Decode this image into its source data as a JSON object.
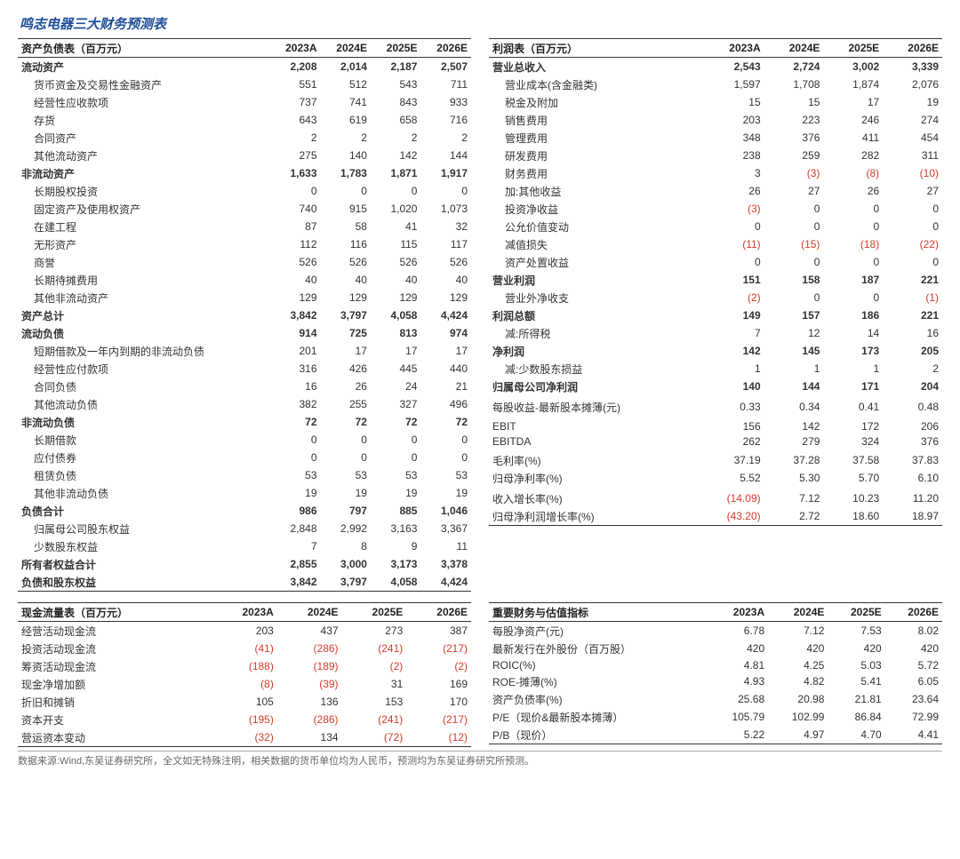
{
  "title": "鸣志电器三大财务预测表",
  "years": [
    "2023A",
    "2024E",
    "2025E",
    "2026E"
  ],
  "balance": {
    "header": "资产负债表（百万元）",
    "rows": [
      {
        "l": "流动资产",
        "v": [
          "2,208",
          "2,014",
          "2,187",
          "2,507"
        ],
        "b": 1
      },
      {
        "l": "货币资金及交易性金融资产",
        "v": [
          "551",
          "512",
          "543",
          "711"
        ],
        "i": 1
      },
      {
        "l": "经营性应收款项",
        "v": [
          "737",
          "741",
          "843",
          "933"
        ],
        "i": 1
      },
      {
        "l": "存货",
        "v": [
          "643",
          "619",
          "658",
          "716"
        ],
        "i": 1
      },
      {
        "l": "合同资产",
        "v": [
          "2",
          "2",
          "2",
          "2"
        ],
        "i": 1
      },
      {
        "l": "其他流动资产",
        "v": [
          "275",
          "140",
          "142",
          "144"
        ],
        "i": 1
      },
      {
        "l": "非流动资产",
        "v": [
          "1,633",
          "1,783",
          "1,871",
          "1,917"
        ],
        "b": 1
      },
      {
        "l": "长期股权投资",
        "v": [
          "0",
          "0",
          "0",
          "0"
        ],
        "i": 1
      },
      {
        "l": "固定资产及使用权资产",
        "v": [
          "740",
          "915",
          "1,020",
          "1,073"
        ],
        "i": 1
      },
      {
        "l": "在建工程",
        "v": [
          "87",
          "58",
          "41",
          "32"
        ],
        "i": 1
      },
      {
        "l": "无形资产",
        "v": [
          "112",
          "116",
          "115",
          "117"
        ],
        "i": 1
      },
      {
        "l": "商誉",
        "v": [
          "526",
          "526",
          "526",
          "526"
        ],
        "i": 1
      },
      {
        "l": "长期待摊费用",
        "v": [
          "40",
          "40",
          "40",
          "40"
        ],
        "i": 1
      },
      {
        "l": "其他非流动资产",
        "v": [
          "129",
          "129",
          "129",
          "129"
        ],
        "i": 1
      },
      {
        "l": "资产总计",
        "v": [
          "3,842",
          "3,797",
          "4,058",
          "4,424"
        ],
        "b": 1
      },
      {
        "l": "流动负债",
        "v": [
          "914",
          "725",
          "813",
          "974"
        ],
        "b": 1
      },
      {
        "l": "短期借款及一年内到期的非流动负债",
        "v": [
          "201",
          "17",
          "17",
          "17"
        ],
        "i": 1
      },
      {
        "l": "经营性应付款项",
        "v": [
          "316",
          "426",
          "445",
          "440"
        ],
        "i": 1
      },
      {
        "l": "合同负债",
        "v": [
          "16",
          "26",
          "24",
          "21"
        ],
        "i": 1
      },
      {
        "l": "其他流动负债",
        "v": [
          "382",
          "255",
          "327",
          "496"
        ],
        "i": 1
      },
      {
        "l": "非流动负债",
        "v": [
          "72",
          "72",
          "72",
          "72"
        ],
        "b": 1
      },
      {
        "l": "长期借款",
        "v": [
          "0",
          "0",
          "0",
          "0"
        ],
        "i": 1
      },
      {
        "l": "应付债券",
        "v": [
          "0",
          "0",
          "0",
          "0"
        ],
        "i": 1
      },
      {
        "l": "租赁负债",
        "v": [
          "53",
          "53",
          "53",
          "53"
        ],
        "i": 1
      },
      {
        "l": "其他非流动负债",
        "v": [
          "19",
          "19",
          "19",
          "19"
        ],
        "i": 1
      },
      {
        "l": "负债合计",
        "v": [
          "986",
          "797",
          "885",
          "1,046"
        ],
        "b": 1
      },
      {
        "l": "归属母公司股东权益",
        "v": [
          "2,848",
          "2,992",
          "3,163",
          "3,367"
        ],
        "i": 1
      },
      {
        "l": "少数股东权益",
        "v": [
          "7",
          "8",
          "9",
          "11"
        ],
        "i": 1
      },
      {
        "l": "所有者权益合计",
        "v": [
          "2,855",
          "3,000",
          "3,173",
          "3,378"
        ],
        "b": 1
      },
      {
        "l": "负债和股东权益",
        "v": [
          "3,842",
          "3,797",
          "4,058",
          "4,424"
        ],
        "b": 1,
        "sep": 1
      }
    ]
  },
  "income": {
    "header": "利润表（百万元）",
    "rows": [
      {
        "l": "营业总收入",
        "v": [
          "2,543",
          "2,724",
          "3,002",
          "3,339"
        ],
        "b": 1
      },
      {
        "l": "营业成本(含金融类)",
        "v": [
          "1,597",
          "1,708",
          "1,874",
          "2,076"
        ],
        "i": 1
      },
      {
        "l": "税金及附加",
        "v": [
          "15",
          "15",
          "17",
          "19"
        ],
        "i": 1
      },
      {
        "l": "销售费用",
        "v": [
          "203",
          "223",
          "246",
          "274"
        ],
        "i": 1
      },
      {
        "l": "管理费用",
        "v": [
          "348",
          "376",
          "411",
          "454"
        ],
        "i": 1
      },
      {
        "l": "研发费用",
        "v": [
          "238",
          "259",
          "282",
          "311"
        ],
        "i": 1
      },
      {
        "l": "财务费用",
        "v": [
          "3",
          "(3)",
          "(8)",
          "(10)"
        ],
        "i": 1,
        "n": [
          0,
          1,
          1,
          1
        ]
      },
      {
        "l": "加:其他收益",
        "v": [
          "26",
          "27",
          "26",
          "27"
        ],
        "i": 1
      },
      {
        "l": "投资净收益",
        "v": [
          "(3)",
          "0",
          "0",
          "0"
        ],
        "i": 1,
        "n": [
          1,
          0,
          0,
          0
        ]
      },
      {
        "l": "公允价值变动",
        "v": [
          "0",
          "0",
          "0",
          "0"
        ],
        "i": 1
      },
      {
        "l": "减值损失",
        "v": [
          "(11)",
          "(15)",
          "(18)",
          "(22)"
        ],
        "i": 1,
        "n": [
          1,
          1,
          1,
          1
        ]
      },
      {
        "l": "资产处置收益",
        "v": [
          "0",
          "0",
          "0",
          "0"
        ],
        "i": 1
      },
      {
        "l": "营业利润",
        "v": [
          "151",
          "158",
          "187",
          "221"
        ],
        "b": 1
      },
      {
        "l": "营业外净收支",
        "v": [
          "(2)",
          "0",
          "0",
          "(1)"
        ],
        "i": 1,
        "n": [
          1,
          0,
          0,
          1
        ]
      },
      {
        "l": "利润总额",
        "v": [
          "149",
          "157",
          "186",
          "221"
        ],
        "b": 1
      },
      {
        "l": "减:所得税",
        "v": [
          "7",
          "12",
          "14",
          "16"
        ],
        "i": 1
      },
      {
        "l": "净利润",
        "v": [
          "142",
          "145",
          "173",
          "205"
        ],
        "b": 1
      },
      {
        "l": "减:少数股东损益",
        "v": [
          "1",
          "1",
          "1",
          "2"
        ],
        "i": 1
      },
      {
        "l": "归属母公司净利润",
        "v": [
          "140",
          "144",
          "171",
          "204"
        ],
        "b": 1
      },
      {
        "l": "",
        "v": [
          "",
          "",
          "",
          ""
        ]
      },
      {
        "l": "每股收益-最新股本摊薄(元)",
        "v": [
          "0.33",
          "0.34",
          "0.41",
          "0.48"
        ]
      },
      {
        "l": "",
        "v": [
          "",
          "",
          "",
          ""
        ]
      },
      {
        "l": "EBIT",
        "v": [
          "156",
          "142",
          "172",
          "206"
        ]
      },
      {
        "l": "EBITDA",
        "v": [
          "262",
          "279",
          "324",
          "376"
        ]
      },
      {
        "l": "",
        "v": [
          "",
          "",
          "",
          ""
        ]
      },
      {
        "l": "毛利率(%)",
        "v": [
          "37.19",
          "37.28",
          "37.58",
          "37.83"
        ]
      },
      {
        "l": "归母净利率(%)",
        "v": [
          "5.52",
          "5.30",
          "5.70",
          "6.10"
        ]
      },
      {
        "l": "",
        "v": [
          "",
          "",
          "",
          ""
        ]
      },
      {
        "l": "收入增长率(%)",
        "v": [
          "(14.09)",
          "7.12",
          "10.23",
          "11.20"
        ],
        "n": [
          1,
          0,
          0,
          0
        ]
      },
      {
        "l": "归母净利润增长率(%)",
        "v": [
          "(43.20)",
          "2.72",
          "18.60",
          "18.97"
        ],
        "n": [
          1,
          0,
          0,
          0
        ],
        "sep": 1
      }
    ]
  },
  "cashflow": {
    "header": "现金流量表（百万元）",
    "rows": [
      {
        "l": "经营活动现金流",
        "v": [
          "203",
          "437",
          "273",
          "387"
        ]
      },
      {
        "l": "投资活动现金流",
        "v": [
          "(41)",
          "(286)",
          "(241)",
          "(217)"
        ],
        "n": [
          1,
          1,
          1,
          1
        ]
      },
      {
        "l": "筹资活动现金流",
        "v": [
          "(188)",
          "(189)",
          "(2)",
          "(2)"
        ],
        "n": [
          1,
          1,
          1,
          1
        ]
      },
      {
        "l": "现金净增加额",
        "v": [
          "(8)",
          "(39)",
          "31",
          "169"
        ],
        "n": [
          1,
          1,
          0,
          0
        ]
      },
      {
        "l": "折旧和摊销",
        "v": [
          "105",
          "136",
          "153",
          "170"
        ]
      },
      {
        "l": "资本开支",
        "v": [
          "(195)",
          "(286)",
          "(241)",
          "(217)"
        ],
        "n": [
          1,
          1,
          1,
          1
        ]
      },
      {
        "l": "营运资本变动",
        "v": [
          "(32)",
          "134",
          "(72)",
          "(12)"
        ],
        "n": [
          1,
          0,
          1,
          1
        ],
        "sep": 1
      }
    ]
  },
  "metrics": {
    "header": "重要财务与估值指标",
    "rows": [
      {
        "l": "每股净资产(元)",
        "v": [
          "6.78",
          "7.12",
          "7.53",
          "8.02"
        ]
      },
      {
        "l": "最新发行在外股份（百万股）",
        "v": [
          "420",
          "420",
          "420",
          "420"
        ]
      },
      {
        "l": "ROIC(%)",
        "v": [
          "4.81",
          "4.25",
          "5.03",
          "5.72"
        ]
      },
      {
        "l": "ROE-摊薄(%)",
        "v": [
          "4.93",
          "4.82",
          "5.41",
          "6.05"
        ]
      },
      {
        "l": "资产负债率(%)",
        "v": [
          "25.68",
          "20.98",
          "21.81",
          "23.64"
        ]
      },
      {
        "l": "P/E（现价&最新股本摊薄）",
        "v": [
          "105.79",
          "102.99",
          "86.84",
          "72.99"
        ]
      },
      {
        "l": "P/B（现价）",
        "v": [
          "5.22",
          "4.97",
          "4.70",
          "4.41"
        ],
        "sep": 1
      }
    ]
  },
  "footnote": "数据来源:Wind,东吴证券研究所，全文如无特殊注明，相关数据的货币单位均为人民币，预测均为东吴证券研究所预测。"
}
